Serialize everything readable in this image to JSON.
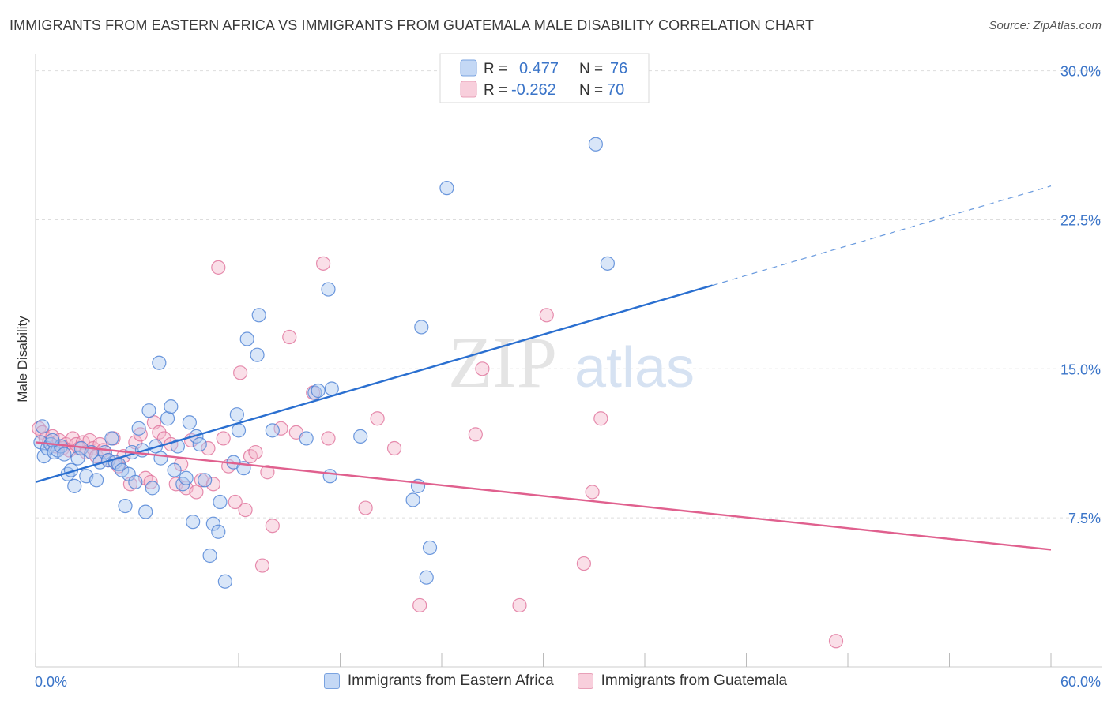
{
  "title": "IMMIGRANTS FROM EASTERN AFRICA VS IMMIGRANTS FROM GUATEMALA MALE DISABILITY CORRELATION CHART",
  "source": "Source: ZipAtlas.com",
  "watermark": {
    "zip": "ZIP",
    "atlas": "atlas"
  },
  "colors": {
    "blue": "#4a7fd4",
    "blue_fill": "#aac8f0",
    "blue_line": "#2a6fd0",
    "pink": "#e0709a",
    "pink_fill": "#f5b8cc",
    "pink_line": "#e0608e",
    "axis_label": "#3a74c8",
    "grid": "#dddddd"
  },
  "chart_data": {
    "type": "scatter",
    "title": "IMMIGRANTS FROM EASTERN AFRICA VS IMMIGRANTS FROM GUATEMALA MALE DISABILITY CORRELATION CHART",
    "xlabel": "",
    "ylabel": "Male Disability",
    "xlim": [
      0,
      60
    ],
    "ylim": [
      0,
      30.5
    ],
    "x_tick_labels": [
      "0.0%",
      "60.0%"
    ],
    "y_ticks": [
      7.5,
      15.0,
      22.5,
      30.0
    ],
    "y_tick_labels": [
      "7.5%",
      "15.0%",
      "22.5%",
      "30.0%"
    ],
    "legend_stats": [
      {
        "r_label": "R =",
        "r_value": "0.477",
        "n_label": "N =",
        "n_value": "76"
      },
      {
        "r_label": "R =",
        "r_value": "-0.262",
        "n_label": "N =",
        "n_value": "70"
      }
    ],
    "series": [
      {
        "name": "Immigrants from Eastern Africa",
        "color": "#4a7fd4",
        "trend": {
          "x0": 0,
          "y0": 9.3,
          "x1": 40,
          "y1": 19.2,
          "dash_to_x": 60,
          "dash_to_y": 24.2
        },
        "points": [
          [
            0.3,
            11.3
          ],
          [
            0.5,
            10.6
          ],
          [
            0.7,
            11.0
          ],
          [
            0.9,
            11.2
          ],
          [
            1.1,
            10.8
          ],
          [
            1.3,
            10.9
          ],
          [
            1.5,
            11.1
          ],
          [
            1.7,
            10.7
          ],
          [
            1.9,
            9.7
          ],
          [
            2.1,
            9.9
          ],
          [
            2.3,
            9.1
          ],
          [
            2.5,
            10.5
          ],
          [
            2.7,
            11.0
          ],
          [
            3.0,
            9.6
          ],
          [
            3.3,
            10.8
          ],
          [
            3.6,
            9.4
          ],
          [
            3.8,
            10.3
          ],
          [
            4.1,
            10.8
          ],
          [
            4.3,
            10.4
          ],
          [
            4.5,
            11.5
          ],
          [
            4.7,
            10.3
          ],
          [
            4.9,
            10.2
          ],
          [
            5.1,
            9.9
          ],
          [
            5.3,
            8.1
          ],
          [
            5.5,
            9.7
          ],
          [
            5.7,
            10.8
          ],
          [
            5.9,
            9.3
          ],
          [
            6.1,
            12.0
          ],
          [
            6.3,
            10.9
          ],
          [
            6.5,
            7.8
          ],
          [
            6.7,
            12.9
          ],
          [
            6.9,
            9.0
          ],
          [
            7.1,
            11.1
          ],
          [
            7.3,
            15.3
          ],
          [
            7.4,
            10.5
          ],
          [
            7.8,
            12.5
          ],
          [
            8.0,
            13.1
          ],
          [
            8.2,
            9.9
          ],
          [
            8.4,
            11.1
          ],
          [
            8.7,
            9.2
          ],
          [
            8.9,
            9.5
          ],
          [
            9.1,
            12.3
          ],
          [
            9.3,
            7.3
          ],
          [
            9.5,
            11.6
          ],
          [
            9.7,
            11.2
          ],
          [
            10.0,
            9.4
          ],
          [
            10.3,
            5.6
          ],
          [
            10.5,
            7.2
          ],
          [
            10.8,
            6.8
          ],
          [
            10.9,
            8.3
          ],
          [
            11.2,
            4.3
          ],
          [
            11.7,
            10.3
          ],
          [
            11.9,
            12.7
          ],
          [
            12.0,
            11.9
          ],
          [
            12.3,
            10.0
          ],
          [
            12.5,
            16.5
          ],
          [
            13.1,
            15.7
          ],
          [
            13.2,
            17.7
          ],
          [
            14.0,
            11.9
          ],
          [
            16.0,
            11.5
          ],
          [
            16.5,
            13.8
          ],
          [
            16.7,
            13.9
          ],
          [
            17.3,
            19.0
          ],
          [
            17.4,
            9.6
          ],
          [
            17.5,
            14.0
          ],
          [
            19.2,
            11.6
          ],
          [
            22.3,
            8.4
          ],
          [
            22.6,
            9.1
          ],
          [
            22.8,
            17.1
          ],
          [
            23.1,
            4.5
          ],
          [
            23.3,
            6.0
          ],
          [
            24.3,
            24.1
          ],
          [
            33.1,
            26.3
          ],
          [
            33.8,
            20.3
          ],
          [
            0.4,
            12.1
          ],
          [
            1.0,
            11.4
          ]
        ]
      },
      {
        "name": "Immigrants from Guatemala",
        "color": "#e0709a",
        "trend": {
          "x0": 0,
          "y0": 11.3,
          "x1": 60,
          "y1": 5.9
        },
        "points": [
          [
            0.2,
            12.0
          ],
          [
            0.4,
            11.8
          ],
          [
            0.6,
            11.5
          ],
          [
            0.8,
            11.3
          ],
          [
            1.0,
            11.6
          ],
          [
            1.2,
            11.1
          ],
          [
            1.4,
            11.4
          ],
          [
            1.6,
            11.0
          ],
          [
            1.8,
            11.2
          ],
          [
            2.0,
            10.9
          ],
          [
            2.2,
            11.5
          ],
          [
            2.4,
            11.2
          ],
          [
            2.6,
            11.0
          ],
          [
            2.8,
            11.3
          ],
          [
            3.0,
            10.8
          ],
          [
            3.2,
            11.4
          ],
          [
            3.4,
            11.0
          ],
          [
            3.6,
            10.6
          ],
          [
            3.8,
            11.2
          ],
          [
            4.0,
            10.9
          ],
          [
            4.3,
            10.4
          ],
          [
            4.6,
            11.5
          ],
          [
            4.9,
            10.1
          ],
          [
            5.2,
            10.6
          ],
          [
            5.6,
            9.2
          ],
          [
            5.9,
            11.3
          ],
          [
            6.2,
            11.7
          ],
          [
            6.5,
            9.5
          ],
          [
            6.8,
            9.3
          ],
          [
            7.0,
            12.3
          ],
          [
            7.3,
            11.8
          ],
          [
            7.6,
            11.5
          ],
          [
            8.0,
            11.2
          ],
          [
            8.3,
            9.2
          ],
          [
            8.6,
            10.2
          ],
          [
            8.9,
            9.0
          ],
          [
            9.2,
            11.4
          ],
          [
            9.5,
            8.8
          ],
          [
            9.8,
            9.4
          ],
          [
            10.2,
            11.0
          ],
          [
            10.5,
            9.2
          ],
          [
            10.8,
            20.1
          ],
          [
            11.1,
            11.5
          ],
          [
            11.4,
            10.1
          ],
          [
            11.8,
            8.3
          ],
          [
            12.1,
            14.8
          ],
          [
            12.4,
            7.9
          ],
          [
            12.7,
            10.6
          ],
          [
            13.0,
            10.8
          ],
          [
            13.4,
            5.1
          ],
          [
            13.7,
            9.8
          ],
          [
            14.0,
            7.1
          ],
          [
            14.5,
            12.0
          ],
          [
            15.0,
            16.6
          ],
          [
            15.4,
            11.8
          ],
          [
            16.4,
            13.8
          ],
          [
            17.0,
            20.3
          ],
          [
            17.3,
            11.5
          ],
          [
            19.5,
            8.0
          ],
          [
            20.2,
            12.5
          ],
          [
            21.2,
            11.0
          ],
          [
            22.7,
            3.1
          ],
          [
            26.0,
            11.7
          ],
          [
            26.4,
            15.0
          ],
          [
            28.6,
            3.1
          ],
          [
            32.4,
            5.2
          ],
          [
            30.2,
            17.7
          ],
          [
            32.9,
            8.8
          ],
          [
            33.4,
            12.5
          ],
          [
            47.3,
            1.3
          ]
        ]
      }
    ]
  }
}
